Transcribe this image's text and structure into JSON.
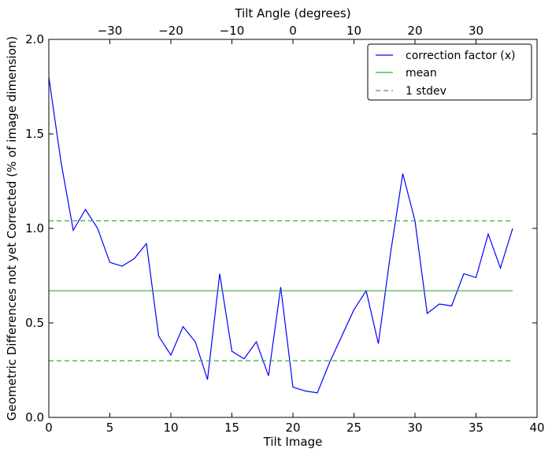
{
  "chart_data": {
    "type": "line",
    "xlabel": "Tilt Image",
    "ylabel": "Geometric Differences not yet Corrected (% of image dimension)",
    "top_xlabel": "Tilt Angle (degrees)",
    "xlim": [
      0,
      40
    ],
    "ylim": [
      0,
      2.0
    ],
    "x_ticks": [
      0,
      5,
      10,
      15,
      20,
      25,
      30,
      35,
      40
    ],
    "x_tick_labels": [
      "0",
      "5",
      "10",
      "15",
      "20",
      "25",
      "30",
      "35",
      "40"
    ],
    "y_ticks": [
      0,
      0.5,
      1.0,
      1.5,
      2.0
    ],
    "y_tick_labels": [
      "0.0",
      "0.5",
      "1.0",
      "1.5",
      "2.0"
    ],
    "top_ticks": [
      -30,
      -20,
      -10,
      0,
      10,
      20,
      30
    ],
    "top_tick_labels": [
      "−30",
      "−20",
      "−10",
      "0",
      "10",
      "20",
      "30"
    ],
    "top_axis_map": {
      "angle_at_x0": -40,
      "degrees_per_image": 2
    },
    "series": [
      {
        "name": "correction factor (x)",
        "color": "#0000ff",
        "style": "solid",
        "x": [
          0,
          1,
          2,
          3,
          4,
          5,
          6,
          7,
          8,
          9,
          10,
          11,
          12,
          13,
          14,
          15,
          16,
          17,
          18,
          19,
          20,
          21,
          22,
          23,
          24,
          25,
          26,
          27,
          28,
          29,
          30,
          31,
          32,
          33,
          34,
          35,
          36,
          37,
          38
        ],
        "y": [
          1.8,
          1.35,
          0.99,
          1.1,
          1.0,
          0.82,
          0.8,
          0.84,
          0.92,
          0.43,
          0.33,
          0.48,
          0.4,
          0.2,
          0.76,
          0.35,
          0.31,
          0.4,
          0.22,
          0.69,
          0.16,
          0.14,
          0.13,
          0.29,
          0.43,
          0.57,
          0.67,
          0.39,
          0.87,
          1.29,
          1.04,
          0.55,
          0.6,
          0.59,
          0.76,
          0.74,
          0.97,
          0.79,
          1.0
        ]
      },
      {
        "name": "mean",
        "color": "#3aaa3a",
        "style": "solid",
        "x": [
          0,
          38
        ],
        "y": [
          0.67,
          0.67
        ]
      },
      {
        "name": "1 stdev",
        "color": "#3aaa3a",
        "style": "dashed",
        "x": [
          0,
          38
        ],
        "y": [
          1.04,
          1.04
        ]
      },
      {
        "name": "",
        "color": "#3aaa3a",
        "style": "dashed",
        "x": [
          0,
          38
        ],
        "y": [
          0.3,
          0.3
        ]
      }
    ],
    "legend": {
      "placement": "top-right",
      "entries": [
        "correction factor (x)",
        "mean",
        "1 stdev"
      ]
    },
    "grid": false
  }
}
